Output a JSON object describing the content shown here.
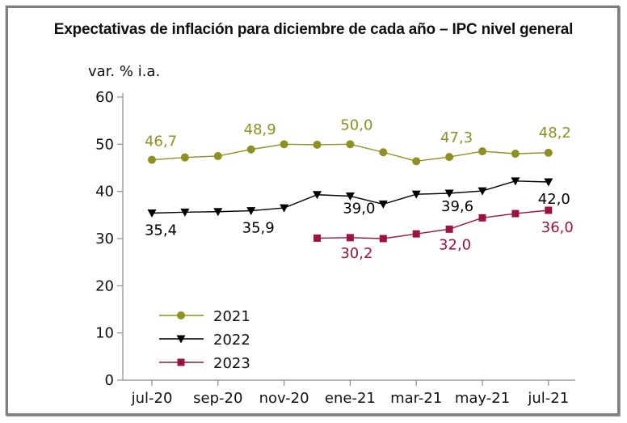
{
  "frame": {
    "border_color": "#7f7f7f",
    "background": "#ffffff"
  },
  "chart_data": {
    "type": "line",
    "title": "Expectativas de inflación para diciembre de cada año – IPC nivel general",
    "ylabel": "var. % i.a.",
    "xlabel": "",
    "ylim": [
      0,
      60
    ],
    "yticks": [
      0,
      10,
      20,
      30,
      40,
      50,
      60
    ],
    "grid": false,
    "legend_position": "lower-left",
    "x": [
      "jul-20",
      "ago-20",
      "sep-20",
      "oct-20",
      "nov-20",
      "dic-20",
      "ene-21",
      "feb-21",
      "mar-21",
      "abr-21",
      "may-21",
      "jun-21",
      "jul-21"
    ],
    "xtick_indices": [
      0,
      2,
      4,
      6,
      8,
      10,
      12
    ],
    "xtick_labels": [
      "jul-20",
      "sep-20",
      "nov-20",
      "ene-21",
      "mar-21",
      "may-21",
      "jul-21"
    ],
    "axis_color": "#8c8c8c",
    "tick_label_color": "#111111",
    "series": [
      {
        "name": "2021",
        "color": "#8e9021",
        "marker": "circle",
        "values": [
          46.7,
          47.2,
          47.5,
          48.9,
          50.0,
          49.9,
          50.0,
          48.3,
          46.4,
          47.3,
          48.5,
          48.0,
          48.2
        ],
        "annotations": [
          {
            "index": 0,
            "text": "46,7",
            "dx": 11,
            "dy": -17
          },
          {
            "index": 3,
            "text": "48,9",
            "dx": 11,
            "dy": -19
          },
          {
            "index": 6,
            "text": "50,0",
            "dx": 8,
            "dy": -18
          },
          {
            "index": 9,
            "text": "47,3",
            "dx": 9,
            "dy": -18
          },
          {
            "index": 12,
            "text": "48,2",
            "dx": 8,
            "dy": -19
          }
        ]
      },
      {
        "name": "2022",
        "color": "#000000",
        "marker": "triangle-down",
        "values": [
          35.4,
          35.6,
          35.7,
          35.9,
          36.5,
          39.3,
          39.0,
          37.3,
          39.4,
          39.6,
          40.1,
          42.2,
          42.0
        ],
        "annotations": [
          {
            "index": 0,
            "text": "35,4",
            "dx": 11,
            "dy": 27
          },
          {
            "index": 3,
            "text": "35,9",
            "dx": 9,
            "dy": 27
          },
          {
            "index": 6,
            "text": "39,0",
            "dx": 11,
            "dy": 21
          },
          {
            "index": 9,
            "text": "39,6",
            "dx": 10,
            "dy": 22
          },
          {
            "index": 12,
            "text": "42,0",
            "dx": 7,
            "dy": 27
          }
        ]
      },
      {
        "name": "2023",
        "color": "#9c1340",
        "marker": "square",
        "values": [
          null,
          null,
          null,
          null,
          null,
          30.1,
          30.2,
          30.0,
          31.0,
          32.0,
          34.4,
          35.3,
          36.0
        ],
        "annotations": [
          {
            "index": 6,
            "text": "30,2",
            "dx": 8,
            "dy": 25
          },
          {
            "index": 9,
            "text": "32,0",
            "dx": 7,
            "dy": 25
          },
          {
            "index": 12,
            "text": "36,0",
            "dx": 11,
            "dy": 27
          }
        ]
      }
    ],
    "legend_entries": [
      "2021",
      "2022",
      "2023"
    ]
  }
}
